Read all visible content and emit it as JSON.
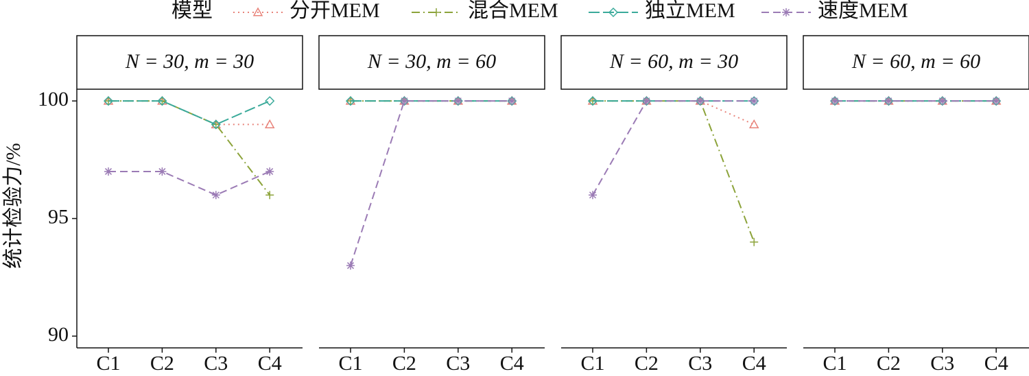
{
  "legend": {
    "title": "模型",
    "series": [
      {
        "name": "分开MEM",
        "color": "#e8837a",
        "marker": "triangle",
        "dash": "dotted"
      },
      {
        "name": "混合MEM",
        "color": "#8ca33a",
        "marker": "plus",
        "dash": "dashdot"
      },
      {
        "name": "独立MEM",
        "color": "#3aaa9a",
        "marker": "diamond",
        "dash": "longdash"
      },
      {
        "name": "速度MEM",
        "color": "#9b7bb5",
        "marker": "asterisk",
        "dash": "dashed"
      }
    ]
  },
  "y_label": "统计检验力/%",
  "chart_data": [
    {
      "type": "line",
      "title": "N = 30, m = 30",
      "categories": [
        "C1",
        "C2",
        "C3",
        "C4"
      ],
      "series": [
        {
          "values": [
            100,
            100,
            99,
            99
          ]
        },
        {
          "values": [
            100,
            100,
            99,
            96
          ]
        },
        {
          "values": [
            100,
            100,
            99,
            100
          ]
        },
        {
          "values": [
            97,
            97,
            96,
            97
          ]
        }
      ],
      "ylim": [
        89.5,
        100.5
      ],
      "yticks": [
        90,
        95,
        100
      ]
    },
    {
      "type": "line",
      "title": "N = 30, m = 60",
      "categories": [
        "C1",
        "C2",
        "C3",
        "C4"
      ],
      "series": [
        {
          "values": [
            100,
            100,
            100,
            100
          ]
        },
        {
          "values": [
            100,
            100,
            100,
            100
          ]
        },
        {
          "values": [
            100,
            100,
            100,
            100
          ]
        },
        {
          "values": [
            93,
            100,
            100,
            100
          ]
        }
      ],
      "ylim": [
        89.5,
        100.5
      ]
    },
    {
      "type": "line",
      "title": "N = 60, m = 30",
      "categories": [
        "C1",
        "C2",
        "C3",
        "C4"
      ],
      "series": [
        {
          "values": [
            100,
            100,
            100,
            99
          ]
        },
        {
          "values": [
            100,
            100,
            100,
            94
          ]
        },
        {
          "values": [
            100,
            100,
            100,
            100
          ]
        },
        {
          "values": [
            96,
            100,
            100,
            100
          ]
        }
      ],
      "ylim": [
        89.5,
        100.5
      ]
    },
    {
      "type": "line",
      "title": "N = 60, m = 60",
      "categories": [
        "C1",
        "C2",
        "C3",
        "C4"
      ],
      "series": [
        {
          "values": [
            100,
            100,
            100,
            100
          ]
        },
        {
          "values": [
            100,
            100,
            100,
            100
          ]
        },
        {
          "values": [
            100,
            100,
            100,
            100
          ]
        },
        {
          "values": [
            100,
            100,
            100,
            100
          ]
        }
      ],
      "ylim": [
        89.5,
        100.5
      ]
    }
  ]
}
